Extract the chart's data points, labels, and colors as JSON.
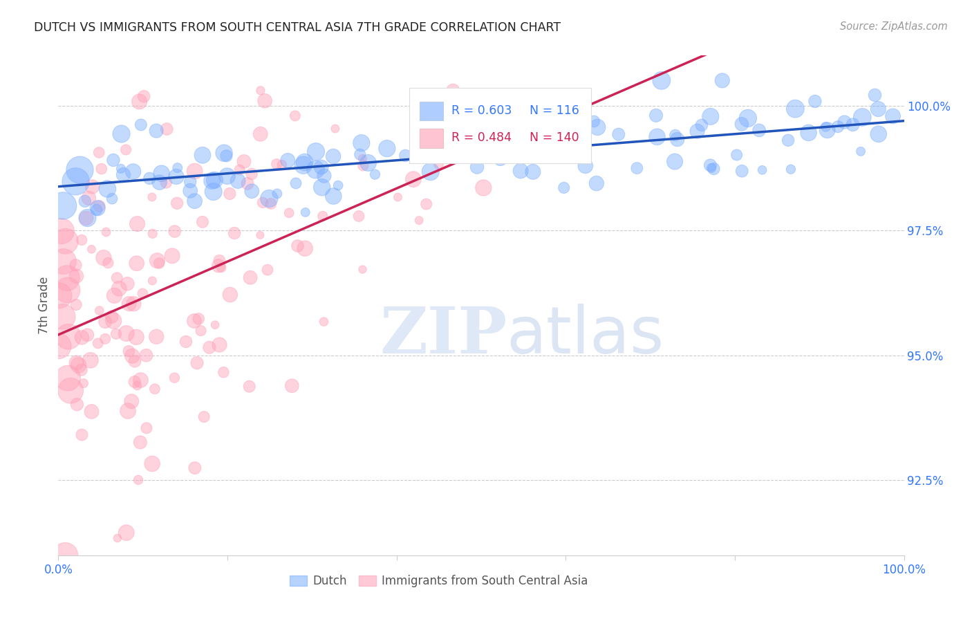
{
  "title": "DUTCH VS IMMIGRANTS FROM SOUTH CENTRAL ASIA 7TH GRADE CORRELATION CHART",
  "source": "Source: ZipAtlas.com",
  "ylabel": "7th Grade",
  "xlim": [
    0.0,
    100.0
  ],
  "ylim": [
    91.0,
    101.0
  ],
  "yticks": [
    92.5,
    95.0,
    97.5,
    100.0
  ],
  "yticklabels": [
    "92.5%",
    "95.0%",
    "97.5%",
    "100.0%"
  ],
  "xticks": [
    0.0,
    20.0,
    40.0,
    60.0,
    80.0,
    100.0
  ],
  "xticklabels": [
    "0.0%",
    "",
    "",
    "",
    "",
    "100.0%"
  ],
  "blue_color": "#7aadff",
  "pink_color": "#ff9eb5",
  "blue_line_color": "#2255bb",
  "pink_line_color": "#cc2255",
  "legend_blue_r": "R = 0.603",
  "legend_blue_n": "N = 116",
  "legend_pink_r": "R = 0.484",
  "legend_pink_n": "N = 140",
  "legend_label_blue": "Dutch",
  "legend_label_pink": "Immigrants from South Central Asia",
  "watermark_zip": "ZIP",
  "watermark_atlas": "atlas",
  "background_color": "#ffffff",
  "title_color": "#222222",
  "axis_label_color": "#555555",
  "tick_label_color": "#3377ff",
  "source_color": "#999999",
  "blue_N": 116,
  "pink_N": 140,
  "blue_R": 0.603,
  "pink_R": 0.484
}
